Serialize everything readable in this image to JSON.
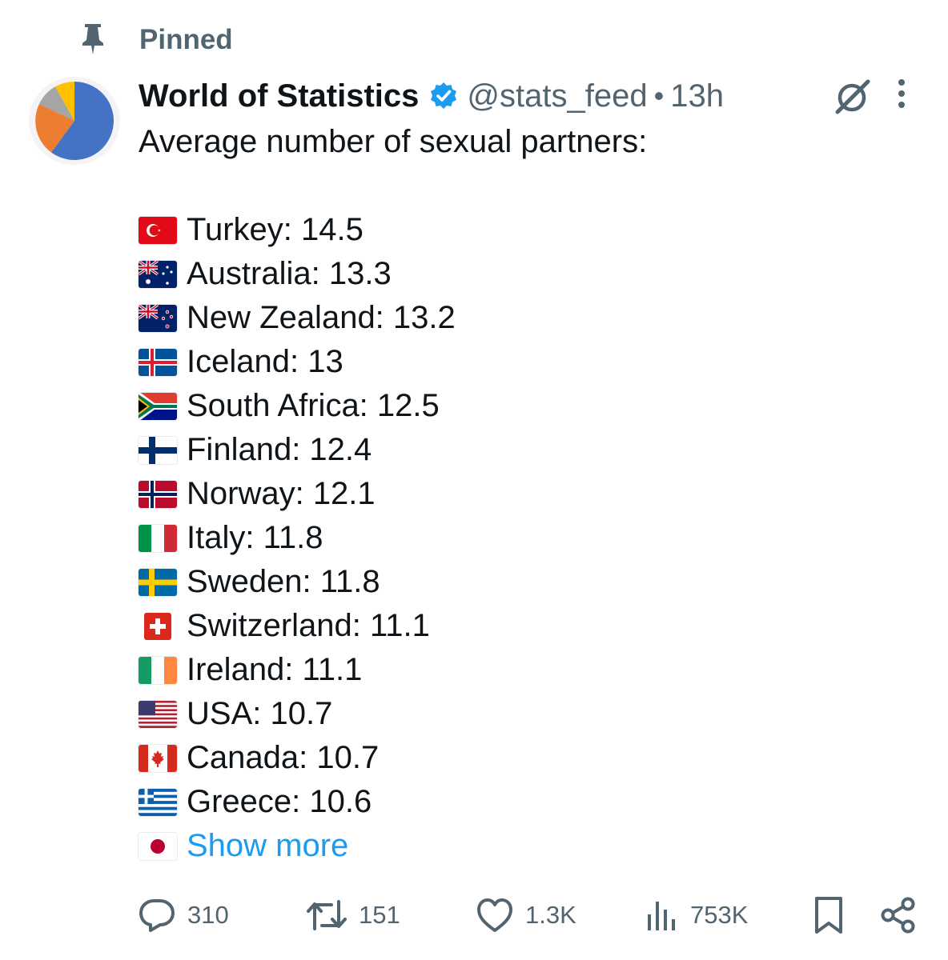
{
  "pinned": {
    "label": "Pinned"
  },
  "author": {
    "name": "World of Statistics",
    "handle": "@stats_feed",
    "separator": "•",
    "time": "13h"
  },
  "tweet": {
    "intro": "Average number of sexual partners:",
    "rows": [
      {
        "flag": "turkey-flag-icon",
        "text": "Turkey: 14.5"
      },
      {
        "flag": "australia-flag-icon",
        "text": "Australia: 13.3"
      },
      {
        "flag": "new-zealand-flag-icon",
        "text": "New Zealand: 13.2"
      },
      {
        "flag": "iceland-flag-icon",
        "text": "Iceland: 13"
      },
      {
        "flag": "south-africa-flag-icon",
        "text": "South Africa: 12.5"
      },
      {
        "flag": "finland-flag-icon",
        "text": "Finland: 12.4"
      },
      {
        "flag": "norway-flag-icon",
        "text": "Norway: 12.1"
      },
      {
        "flag": "italy-flag-icon",
        "text": "Italy: 11.8"
      },
      {
        "flag": "sweden-flag-icon",
        "text": "Sweden: 11.8"
      },
      {
        "flag": "switzerland-flag-icon",
        "text": "Switzerland: 11.1"
      },
      {
        "flag": "ireland-flag-icon",
        "text": "Ireland: 11.1"
      },
      {
        "flag": "usa-flag-icon",
        "text": "USA: 10.7"
      },
      {
        "flag": "canada-flag-icon",
        "text": "Canada: 10.7"
      },
      {
        "flag": "greece-flag-icon",
        "text": "Greece: 10.6"
      }
    ],
    "last_flag": "japan-flag-icon",
    "show_more": "Show more"
  },
  "actions": {
    "replies": "310",
    "reposts": "151",
    "likes": "1.3K",
    "views": "753K"
  },
  "colors": {
    "text": "#0f1419",
    "secondary": "#536471",
    "link": "#1d9bf0",
    "verified": "#1d9bf0"
  }
}
